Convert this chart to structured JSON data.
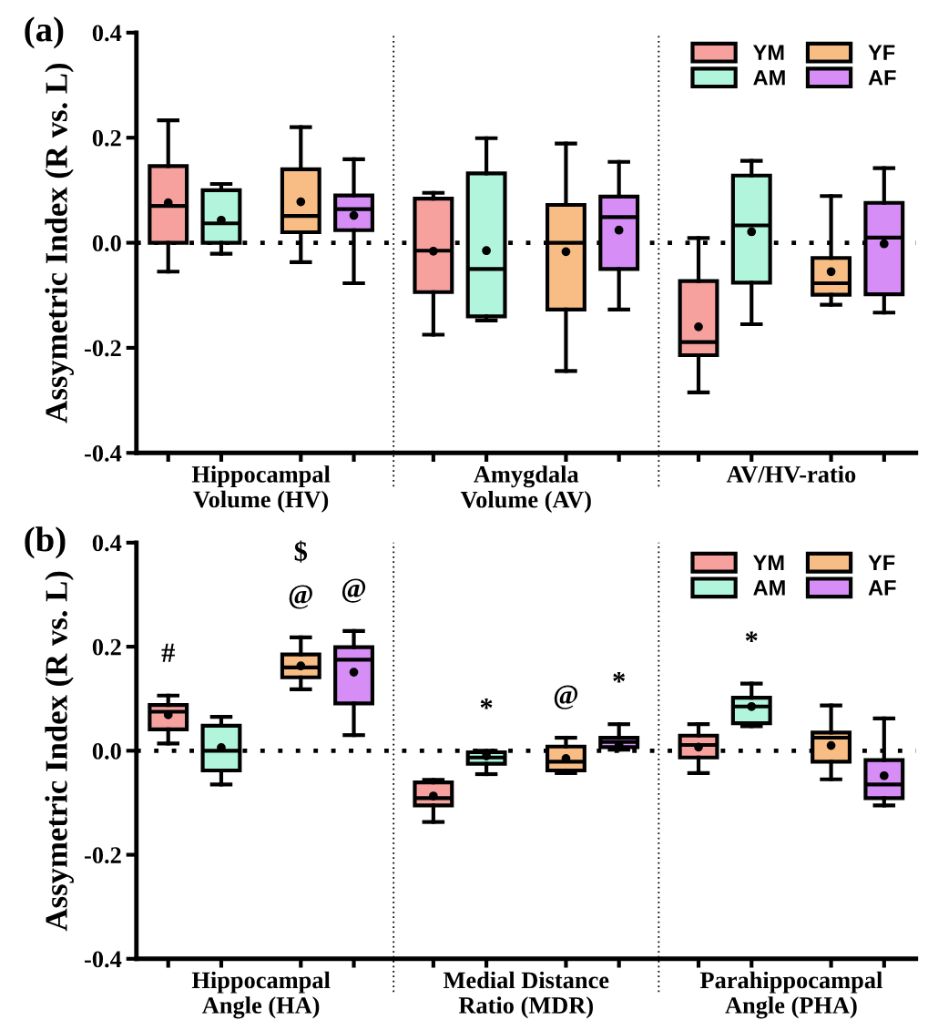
{
  "chart_data": [
    {
      "type": "box",
      "title": "(a)",
      "ylabel": "Assymetric Index (R vs. L)",
      "categories": [
        "Hippocampal\nVolume (HV)",
        "Amygdala\nVolume (AV)",
        "AV/HV-ratio"
      ],
      "ylim": [
        -0.4,
        0.4
      ],
      "yticks": [
        {
          "value": -0.4,
          "label": "-0.4"
        },
        {
          "value": -0.2,
          "label": "-0.2"
        },
        {
          "value": 0,
          "label": "0.0"
        },
        {
          "value": 0.2,
          "label": "0.2"
        },
        {
          "value": 0.4,
          "label": "0.4"
        }
      ],
      "grid": false,
      "legend": "top right",
      "ref_lines": [
        {
          "axis": "y",
          "value": 0,
          "line_style": "dotted",
          "color": "#000000"
        }
      ],
      "series": [
        {
          "name": "YM",
          "color": "#f7a19f",
          "boxes": [
            {
              "low": -0.055,
              "q1": 0.0,
              "median": 0.07,
              "q3": 0.146,
              "high": 0.233,
              "mean": 0.076
            },
            {
              "low": -0.175,
              "q1": -0.094,
              "median": -0.015,
              "q3": 0.084,
              "high": 0.095,
              "mean": -0.016
            },
            {
              "low": -0.285,
              "q1": -0.214,
              "median": -0.189,
              "q3": -0.073,
              "high": 0.009,
              "mean": -0.16
            }
          ]
        },
        {
          "name": "AM",
          "color": "#b0f5dc",
          "boxes": [
            {
              "low": -0.021,
              "q1": 0.0,
              "median": 0.037,
              "q3": 0.1,
              "high": 0.112,
              "mean": 0.043
            },
            {
              "low": -0.148,
              "q1": -0.14,
              "median": -0.05,
              "q3": 0.132,
              "high": 0.199,
              "mean": -0.015
            },
            {
              "low": -0.155,
              "q1": -0.076,
              "median": 0.033,
              "q3": 0.128,
              "high": 0.156,
              "mean": 0.021
            }
          ]
        },
        {
          "name": "YF",
          "color": "#f8bd84",
          "boxes": [
            {
              "low": -0.037,
              "q1": 0.02,
              "median": 0.051,
              "q3": 0.14,
              "high": 0.22,
              "mean": 0.078
            },
            {
              "low": -0.244,
              "q1": -0.127,
              "median": 0.0,
              "q3": 0.072,
              "high": 0.189,
              "mean": -0.017
            },
            {
              "low": -0.118,
              "q1": -0.099,
              "median": -0.077,
              "q3": -0.029,
              "high": 0.089,
              "mean": -0.055
            }
          ]
        },
        {
          "name": "AF",
          "color": "#d68ef6",
          "boxes": [
            {
              "low": -0.077,
              "q1": 0.024,
              "median": 0.064,
              "q3": 0.09,
              "high": 0.159,
              "mean": 0.052
            },
            {
              "low": -0.127,
              "q1": -0.05,
              "median": 0.049,
              "q3": 0.088,
              "high": 0.154,
              "mean": 0.024
            },
            {
              "low": -0.133,
              "q1": -0.098,
              "median": 0.01,
              "q3": 0.076,
              "high": 0.142,
              "mean": -0.002
            }
          ]
        }
      ]
    },
    {
      "type": "box",
      "title": "(b)",
      "ylabel": "Assymetric Index (R vs. L)",
      "categories": [
        "Hippocampal\nAngle (HA)",
        "Medial Distance\nRatio (MDR)",
        "Parahippocampal\nAngle (PHA)"
      ],
      "ylim": [
        -0.4,
        0.4
      ],
      "yticks": [
        {
          "value": -0.4,
          "label": "-0.4"
        },
        {
          "value": -0.2,
          "label": "-0.2"
        },
        {
          "value": 0,
          "label": "0.0"
        },
        {
          "value": 0.2,
          "label": "0.2"
        },
        {
          "value": 0.4,
          "label": "0.4"
        }
      ],
      "grid": false,
      "legend": "top right",
      "ref_lines": [
        {
          "axis": "y",
          "value": 0,
          "line_style": "dotted",
          "color": "#000000"
        }
      ],
      "series": [
        {
          "name": "YM",
          "color": "#f7a19f",
          "boxes": [
            {
              "low": 0.014,
              "q1": 0.041,
              "median": 0.075,
              "q3": 0.088,
              "high": 0.106,
              "mean": 0.069
            },
            {
              "low": -0.137,
              "q1": -0.105,
              "median": -0.091,
              "q3": -0.061,
              "high": -0.056,
              "mean": -0.087
            },
            {
              "low": -0.043,
              "q1": -0.013,
              "median": 0.011,
              "q3": 0.029,
              "high": 0.051,
              "mean": 0.007
            }
          ]
        },
        {
          "name": "AM",
          "color": "#b0f5dc",
          "boxes": [
            {
              "low": -0.065,
              "q1": -0.038,
              "median": 0.0,
              "q3": 0.048,
              "high": 0.065,
              "mean": 0.006
            },
            {
              "low": -0.045,
              "q1": -0.025,
              "median": -0.013,
              "q3": -0.003,
              "high": 0.0,
              "mean": -0.01
            },
            {
              "low": 0.047,
              "q1": 0.053,
              "median": 0.085,
              "q3": 0.102,
              "high": 0.129,
              "mean": 0.085
            }
          ]
        },
        {
          "name": "YF",
          "color": "#f8bd84",
          "boxes": [
            {
              "low": 0.118,
              "q1": 0.141,
              "median": 0.16,
              "q3": 0.185,
              "high": 0.218,
              "mean": 0.163
            },
            {
              "low": -0.043,
              "q1": -0.038,
              "median": -0.021,
              "q3": 0.008,
              "high": 0.025,
              "mean": -0.015
            },
            {
              "low": -0.055,
              "q1": -0.021,
              "median": 0.025,
              "q3": 0.035,
              "high": 0.087,
              "mean": 0.01
            }
          ]
        },
        {
          "name": "AF",
          "color": "#d68ef6",
          "boxes": [
            {
              "low": 0.03,
              "q1": 0.091,
              "median": 0.175,
              "q3": 0.199,
              "high": 0.23,
              "mean": 0.151
            },
            {
              "low": 0.002,
              "q1": 0.007,
              "median": 0.017,
              "q3": 0.025,
              "high": 0.051,
              "mean": 0.011
            },
            {
              "low": -0.105,
              "q1": -0.091,
              "median": -0.065,
              "q3": -0.018,
              "high": 0.062,
              "mean": -0.048
            }
          ]
        }
      ],
      "annotations": [
        "#",
        "$",
        "@",
        "@",
        "*",
        "@",
        "*",
        "*"
      ]
    }
  ]
}
